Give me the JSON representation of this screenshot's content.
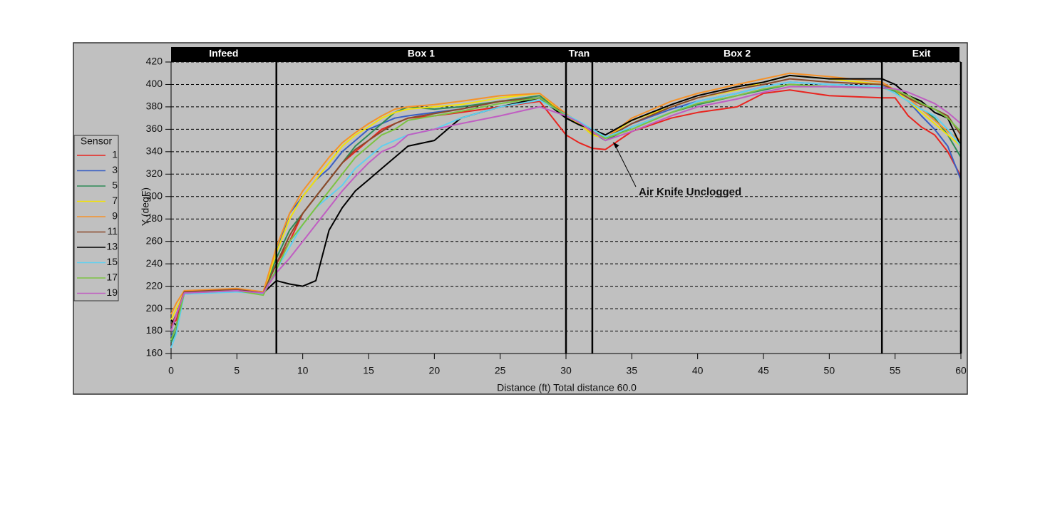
{
  "chart_data": {
    "type": "line",
    "xlabel": "Distance (ft) Total distance 60.0",
    "ylabel": "Y (degF)",
    "legend_title": "Sensor",
    "legend_position": "left",
    "grid": true,
    "xlim": [
      0,
      60
    ],
    "xticks": [
      0,
      5,
      10,
      15,
      20,
      25,
      30,
      35,
      40,
      45,
      50,
      55,
      60
    ],
    "ylim": [
      160,
      420
    ],
    "yticks": [
      160,
      180,
      200,
      220,
      240,
      260,
      280,
      300,
      320,
      340,
      360,
      380,
      400,
      420
    ],
    "zones": [
      {
        "label": "Infeed",
        "start": 0,
        "end": 8
      },
      {
        "label": "Box 1",
        "start": 8,
        "end": 30
      },
      {
        "label": "Tran",
        "start": 30,
        "end": 32
      },
      {
        "label": "Box 2",
        "start": 32,
        "end": 54
      },
      {
        "label": "Exit",
        "start": 54,
        "end": 60
      }
    ],
    "annotation": {
      "text": "Air Knife Unclogged",
      "x": 33.5,
      "y": 350
    },
    "x": [
      0,
      0.4,
      1,
      5,
      7,
      8,
      9,
      10,
      11,
      12,
      13,
      14,
      15,
      16,
      17,
      18,
      20,
      22,
      25,
      28,
      30,
      31,
      32,
      33,
      35,
      38,
      40,
      43,
      45,
      47,
      50,
      54,
      55,
      56,
      57,
      58,
      59,
      60
    ],
    "series": [
      {
        "name": "1",
        "color": "#e8241f",
        "values": [
          185,
          190,
          213,
          216,
          214,
          240,
          260,
          285,
          300,
          315,
          330,
          340,
          350,
          360,
          365,
          370,
          372,
          375,
          380,
          385,
          355,
          348,
          343,
          342,
          358,
          370,
          375,
          380,
          392,
          395,
          390,
          388,
          388,
          372,
          362,
          355,
          340,
          318
        ]
      },
      {
        "name": "3",
        "color": "#3a5fc4",
        "values": [
          175,
          185,
          215,
          216,
          214,
          250,
          285,
          300,
          315,
          325,
          340,
          350,
          360,
          365,
          370,
          372,
          375,
          378,
          385,
          388,
          372,
          365,
          355,
          352,
          365,
          378,
          385,
          392,
          398,
          402,
          400,
          398,
          395,
          385,
          372,
          360,
          345,
          315
        ]
      },
      {
        "name": "5",
        "color": "#2e8b57",
        "values": [
          170,
          180,
          214,
          216,
          213,
          245,
          270,
          285,
          300,
          315,
          330,
          345,
          355,
          365,
          375,
          380,
          378,
          380,
          385,
          390,
          372,
          364,
          357,
          350,
          362,
          375,
          382,
          390,
          395,
          400,
          398,
          397,
          394,
          385,
          378,
          370,
          355,
          335
        ]
      },
      {
        "name": "7",
        "color": "#f2e20a",
        "values": [
          190,
          200,
          214,
          217,
          214,
          250,
          280,
          300,
          315,
          330,
          345,
          355,
          362,
          370,
          375,
          378,
          380,
          382,
          388,
          392,
          372,
          365,
          355,
          352,
          368,
          380,
          388,
          395,
          402,
          408,
          405,
          400,
          395,
          385,
          375,
          365,
          355,
          345
        ]
      },
      {
        "name": "9",
        "color": "#f5922a",
        "values": [
          195,
          205,
          216,
          218,
          215,
          255,
          285,
          305,
          320,
          335,
          348,
          357,
          365,
          372,
          378,
          380,
          382,
          385,
          390,
          392,
          374,
          366,
          357,
          352,
          370,
          385,
          392,
          400,
          405,
          410,
          407,
          402,
          395,
          388,
          378,
          368,
          358,
          350
        ]
      },
      {
        "name": "11",
        "color": "#8b4a2b",
        "values": [
          185,
          195,
          215,
          217,
          214,
          240,
          265,
          285,
          300,
          315,
          330,
          342,
          350,
          358,
          365,
          370,
          374,
          378,
          385,
          388,
          373,
          366,
          358,
          352,
          365,
          380,
          388,
          396,
          400,
          405,
          402,
          400,
          395,
          388,
          382,
          378,
          372,
          355
        ]
      },
      {
        "name": "13",
        "color": "#000000",
        "values": [
          190,
          185,
          214,
          216,
          214,
          225,
          222,
          220,
          225,
          270,
          290,
          305,
          315,
          325,
          335,
          345,
          350,
          370,
          380,
          388,
          370,
          364,
          360,
          355,
          368,
          382,
          390,
          398,
          402,
          408,
          405,
          405,
          400,
          390,
          385,
          375,
          370,
          345
        ]
      },
      {
        "name": "15",
        "color": "#5fd0f0",
        "values": [
          165,
          178,
          213,
          215,
          213,
          235,
          255,
          275,
          290,
          300,
          310,
          325,
          335,
          345,
          350,
          355,
          360,
          370,
          380,
          386,
          373,
          367,
          360,
          353,
          362,
          375,
          385,
          392,
          398,
          402,
          400,
          398,
          392,
          385,
          378,
          372,
          360,
          345
        ]
      },
      {
        "name": "17",
        "color": "#7cc242",
        "values": [
          172,
          185,
          214,
          216,
          212,
          235,
          260,
          275,
          290,
          305,
          320,
          335,
          345,
          355,
          360,
          368,
          372,
          376,
          383,
          388,
          372,
          366,
          358,
          352,
          360,
          375,
          383,
          390,
          396,
          400,
          398,
          397,
          395,
          390,
          383,
          378,
          370,
          358
        ]
      },
      {
        "name": "19",
        "color": "#c05ec2",
        "values": [
          180,
          195,
          214,
          216,
          214,
          232,
          245,
          260,
          275,
          290,
          305,
          318,
          330,
          340,
          345,
          355,
          360,
          365,
          372,
          380,
          372,
          366,
          358,
          350,
          358,
          372,
          380,
          387,
          393,
          398,
          398,
          397,
          396,
          393,
          388,
          383,
          375,
          365
        ]
      }
    ]
  }
}
